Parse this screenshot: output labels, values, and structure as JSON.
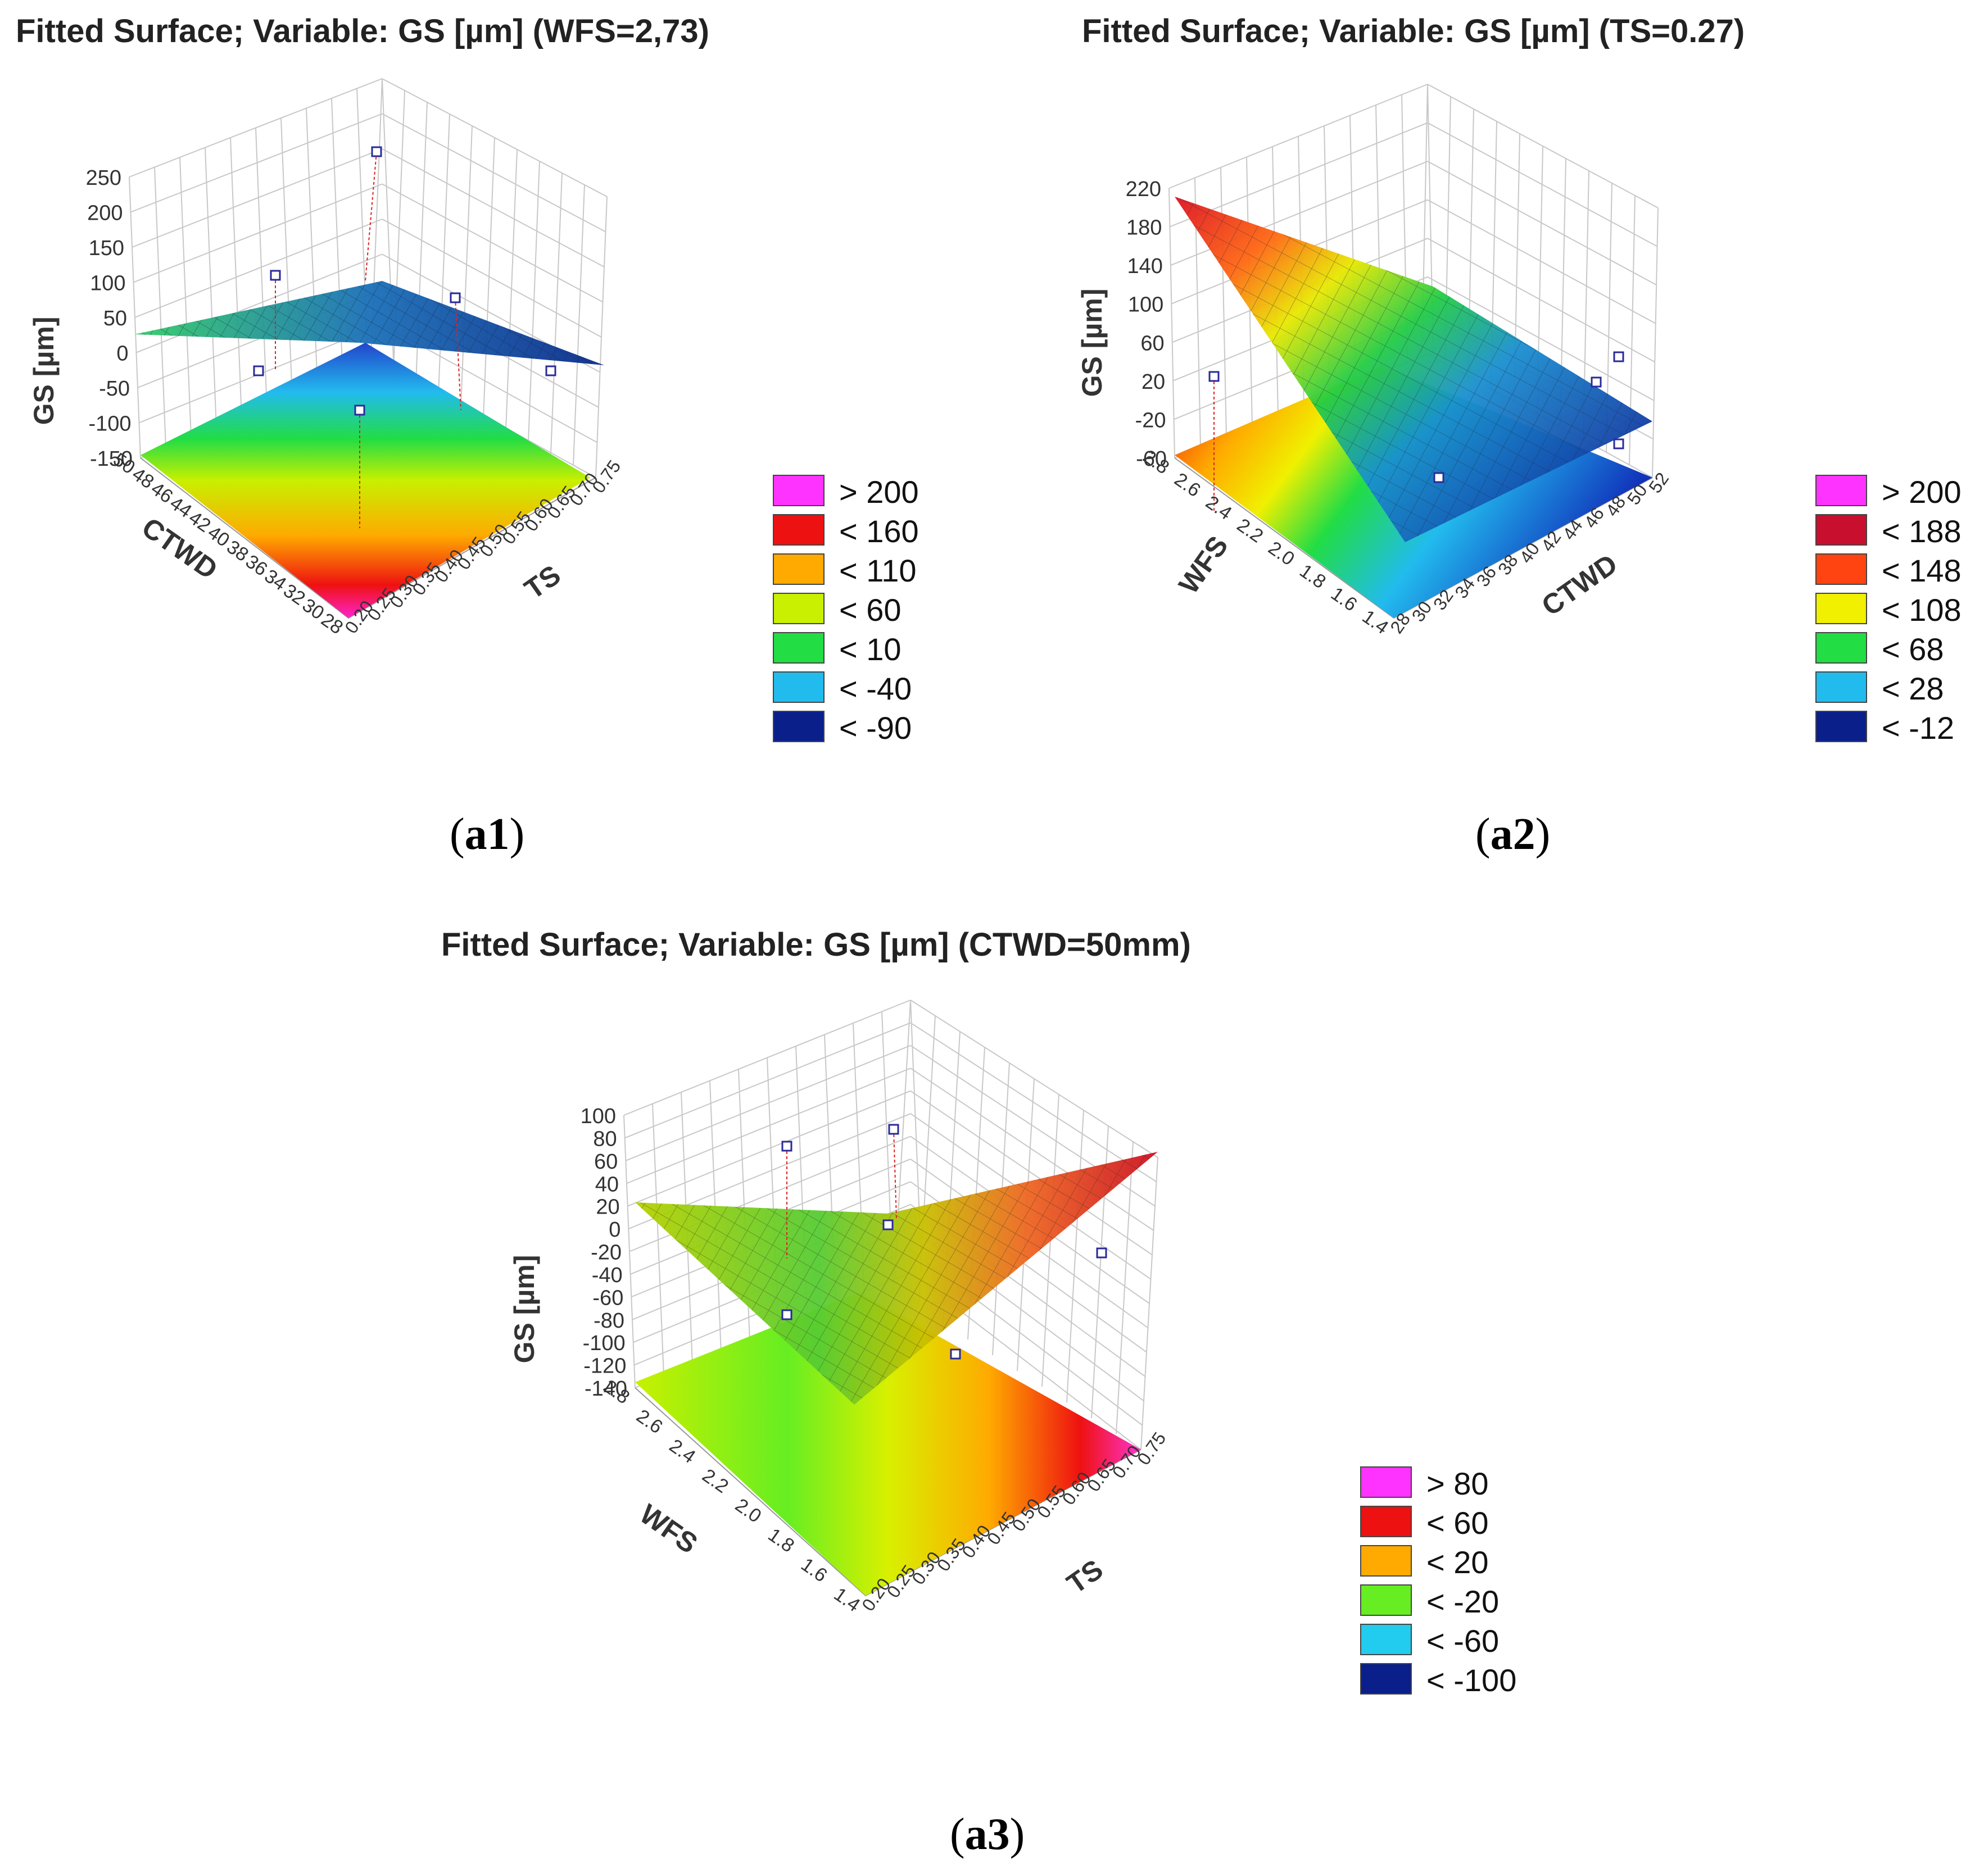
{
  "chart_data": [
    {
      "type": "surface",
      "title": "Fitted Surface; Variable: GS [µm] (WFS=2,73)",
      "caption_bold": "a1",
      "zlabel": "GS [µm]",
      "xlabel": "TS",
      "ylabel": "CTWD",
      "zticks": [
        "250",
        "200",
        "150",
        "100",
        "50",
        "0",
        "-50",
        "-100",
        "-150"
      ],
      "xticks": [
        "0.20",
        "0.25",
        "0.30",
        "0.35",
        "0.40",
        "0.45",
        "0.50",
        "0.55",
        "0.60",
        "0.65",
        "0.70",
        "0.75"
      ],
      "yticks": [
        "28",
        "30",
        "32",
        "34",
        "36",
        "38",
        "40",
        "42",
        "44",
        "46",
        "48",
        "50"
      ],
      "zlim": [
        -150,
        250
      ],
      "legend": [
        {
          "label": "> 200",
          "color": "#ff33ff"
        },
        {
          "label": "< 160",
          "color": "#ee1111"
        },
        {
          "label": "< 110",
          "color": "#ffaa00"
        },
        {
          "label": "< 60",
          "color": "#c8f000"
        },
        {
          "label": "< 10",
          "color": "#22dd44"
        },
        {
          "label": "< -40",
          "color": "#22bbee"
        },
        {
          "label": "< -90",
          "color": "#0a1f8a"
        }
      ]
    },
    {
      "type": "surface",
      "title": "Fitted Surface; Variable: GS [µm] (TS=0.27)",
      "caption_bold": "a2",
      "zlabel": "GS [µm]",
      "xlabel": "CTWD",
      "ylabel": "WFS",
      "zticks": [
        "220",
        "180",
        "140",
        "100",
        "60",
        "20",
        "-20",
        "-60"
      ],
      "xticks": [
        "28",
        "30",
        "32",
        "34",
        "36",
        "38",
        "40",
        "42",
        "44",
        "46",
        "48",
        "50",
        "52"
      ],
      "yticks": [
        "1.4",
        "1.6",
        "1.8",
        "2.0",
        "2.2",
        "2.4",
        "2.6",
        "2.8"
      ],
      "zlim": [
        -60,
        220
      ],
      "legend": [
        {
          "label": "> 200",
          "color": "#ff33ff"
        },
        {
          "label": "< 188",
          "color": "#c8102e"
        },
        {
          "label": "< 148",
          "color": "#ff4411"
        },
        {
          "label": "< 108",
          "color": "#f0f000"
        },
        {
          "label": "< 68",
          "color": "#22dd44"
        },
        {
          "label": "< 28",
          "color": "#22bbee"
        },
        {
          "label": "< -12",
          "color": "#0a1f8a"
        }
      ]
    },
    {
      "type": "surface",
      "title": "Fitted Surface; Variable: GS [µm] (CTWD=50mm)",
      "caption_bold": "a3",
      "zlabel": "GS [µm]",
      "xlabel": "TS",
      "ylabel": "WFS",
      "zticks": [
        "100",
        "80",
        "60",
        "40",
        "20",
        "0",
        "-20",
        "-40",
        "-60",
        "-80",
        "-100",
        "-120",
        "-140"
      ],
      "xticks": [
        "0.20",
        "0.25",
        "0.30",
        "0.35",
        "0.40",
        "0.45",
        "0.50",
        "0.55",
        "0.60",
        "0.65",
        "0.70",
        "0.75"
      ],
      "yticks": [
        "1.4",
        "1.6",
        "1.8",
        "2.0",
        "2.2",
        "2.4",
        "2.6",
        "2.8"
      ],
      "zlim": [
        -140,
        100
      ],
      "legend": [
        {
          "label": "> 80",
          "color": "#ff33ff"
        },
        {
          "label": "< 60",
          "color": "#ee1111"
        },
        {
          "label": "< 20",
          "color": "#ffaa00"
        },
        {
          "label": "< -20",
          "color": "#66ee22"
        },
        {
          "label": "< -60",
          "color": "#22ccee"
        },
        {
          "label": "< -100",
          "color": "#0a1f8a"
        }
      ]
    }
  ]
}
